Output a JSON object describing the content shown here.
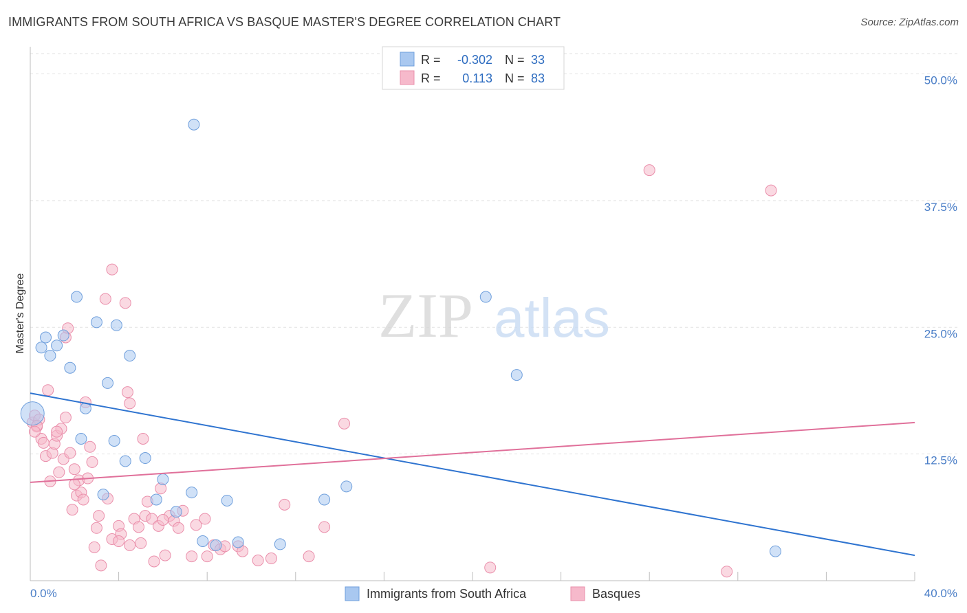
{
  "title": "IMMIGRANTS FROM SOUTH AFRICA VS BASQUE MASTER'S DEGREE CORRELATION CHART",
  "source": "Source: ZipAtlas.com",
  "watermark": {
    "zip": "ZIP",
    "atlas": "atlas"
  },
  "colors": {
    "blue_fill": "#a9c8f0",
    "blue_stroke": "#6f9fdc",
    "blue_line": "#2f74d0",
    "pink_fill": "#f6b9cb",
    "pink_stroke": "#ea8fab",
    "pink_line": "#e0709a"
  },
  "legend": {
    "rows": [
      {
        "r_label": "R =",
        "r_value": "-0.302",
        "n_label": "N =",
        "n_value": "33"
      },
      {
        "r_label": "R =",
        "r_value": "0.113",
        "n_label": "N =",
        "n_value": "83"
      }
    ]
  },
  "chart_data": {
    "type": "scatter",
    "title": "IMMIGRANTS FROM SOUTH AFRICA VS BASQUE MASTER'S DEGREE CORRELATION CHART",
    "xlabel": "",
    "ylabel": "Master's Degree",
    "xlim": [
      0,
      40
    ],
    "ylim": [
      0,
      52
    ],
    "x_tick_labels": [
      "0.0%",
      "40.0%"
    ],
    "y_ticks": [
      12.5,
      25.0,
      37.5,
      50.0
    ],
    "y_tick_labels": [
      "12.5%",
      "25.0%",
      "37.5%",
      "50.0%"
    ],
    "series": [
      {
        "name": "Immigrants from South Africa",
        "r": -0.302,
        "n": 33,
        "trend": {
          "x": [
            0,
            40
          ],
          "y": [
            18.5,
            2.5
          ]
        },
        "points": [
          {
            "x": 0.1,
            "y": 16.5,
            "big": true
          },
          {
            "x": 0.5,
            "y": 23
          },
          {
            "x": 0.7,
            "y": 24
          },
          {
            "x": 0.9,
            "y": 22.2
          },
          {
            "x": 1.2,
            "y": 23.2
          },
          {
            "x": 1.5,
            "y": 24.2
          },
          {
            "x": 1.8,
            "y": 21
          },
          {
            "x": 2.1,
            "y": 28
          },
          {
            "x": 2.3,
            "y": 14
          },
          {
            "x": 2.5,
            "y": 17
          },
          {
            "x": 3.0,
            "y": 25.5
          },
          {
            "x": 3.3,
            "y": 8.5
          },
          {
            "x": 3.5,
            "y": 19.5
          },
          {
            "x": 3.8,
            "y": 13.8
          },
          {
            "x": 3.9,
            "y": 25.2
          },
          {
            "x": 4.3,
            "y": 11.8
          },
          {
            "x": 4.5,
            "y": 22.2
          },
          {
            "x": 5.2,
            "y": 12.1
          },
          {
            "x": 5.7,
            "y": 8.0
          },
          {
            "x": 6.0,
            "y": 10
          },
          {
            "x": 6.6,
            "y": 6.8
          },
          {
            "x": 7.3,
            "y": 8.7
          },
          {
            "x": 7.4,
            "y": 45
          },
          {
            "x": 7.8,
            "y": 3.9
          },
          {
            "x": 8.4,
            "y": 3.5
          },
          {
            "x": 8.9,
            "y": 7.9
          },
          {
            "x": 9.4,
            "y": 3.8
          },
          {
            "x": 11.3,
            "y": 3.6
          },
          {
            "x": 13.3,
            "y": 8.0
          },
          {
            "x": 14.3,
            "y": 9.3
          },
          {
            "x": 20.6,
            "y": 28
          },
          {
            "x": 22.0,
            "y": 20.3
          },
          {
            "x": 33.7,
            "y": 2.9
          }
        ]
      },
      {
        "name": "Basques",
        "r": 0.113,
        "n": 83,
        "trend": {
          "x": [
            0,
            40
          ],
          "y": [
            9.7,
            15.6
          ]
        },
        "points": [
          {
            "x": 0.1,
            "y": 15.6
          },
          {
            "x": 0.2,
            "y": 16.3
          },
          {
            "x": 0.3,
            "y": 15.2
          },
          {
            "x": 0.4,
            "y": 15.9
          },
          {
            "x": 0.5,
            "y": 14
          },
          {
            "x": 0.6,
            "y": 13.6
          },
          {
            "x": 0.7,
            "y": 12.3
          },
          {
            "x": 0.8,
            "y": 18.8
          },
          {
            "x": 0.9,
            "y": 9.8
          },
          {
            "x": 1.0,
            "y": 12.6
          },
          {
            "x": 1.1,
            "y": 13.5
          },
          {
            "x": 1.2,
            "y": 14.3
          },
          {
            "x": 1.3,
            "y": 10.7
          },
          {
            "x": 1.4,
            "y": 15
          },
          {
            "x": 1.5,
            "y": 12
          },
          {
            "x": 1.6,
            "y": 16.1
          },
          {
            "x": 1.7,
            "y": 24.9
          },
          {
            "x": 1.8,
            "y": 12.6
          },
          {
            "x": 1.9,
            "y": 7.0
          },
          {
            "x": 2.0,
            "y": 11
          },
          {
            "x": 2.1,
            "y": 8.4
          },
          {
            "x": 2.2,
            "y": 9.9
          },
          {
            "x": 2.3,
            "y": 8.7
          },
          {
            "x": 2.4,
            "y": 8.0
          },
          {
            "x": 2.5,
            "y": 17.6
          },
          {
            "x": 2.6,
            "y": 10.1
          },
          {
            "x": 2.7,
            "y": 13.2
          },
          {
            "x": 2.8,
            "y": 11.7
          },
          {
            "x": 2.9,
            "y": 3.3
          },
          {
            "x": 3.0,
            "y": 5.2
          },
          {
            "x": 3.1,
            "y": 6.4
          },
          {
            "x": 3.2,
            "y": 1.5
          },
          {
            "x": 3.4,
            "y": 27.8
          },
          {
            "x": 3.5,
            "y": 8.1
          },
          {
            "x": 3.7,
            "y": 4.1
          },
          {
            "x": 3.7,
            "y": 30.7
          },
          {
            "x": 4.0,
            "y": 5.4
          },
          {
            "x": 4.1,
            "y": 4.6
          },
          {
            "x": 4.3,
            "y": 27.4
          },
          {
            "x": 4.4,
            "y": 18.6
          },
          {
            "x": 4.5,
            "y": 3.5
          },
          {
            "x": 4.7,
            "y": 6.1
          },
          {
            "x": 4.9,
            "y": 5.3
          },
          {
            "x": 5.0,
            "y": 3.7
          },
          {
            "x": 5.1,
            "y": 14
          },
          {
            "x": 5.2,
            "y": 6.4
          },
          {
            "x": 5.3,
            "y": 7.8
          },
          {
            "x": 5.5,
            "y": 6.1
          },
          {
            "x": 5.6,
            "y": 1.9
          },
          {
            "x": 5.8,
            "y": 5.4
          },
          {
            "x": 5.9,
            "y": 9.1
          },
          {
            "x": 6.1,
            "y": 2.5
          },
          {
            "x": 6.3,
            "y": 6.4
          },
          {
            "x": 6.5,
            "y": 5.9
          },
          {
            "x": 6.7,
            "y": 5.2
          },
          {
            "x": 6.9,
            "y": 6.9
          },
          {
            "x": 7.3,
            "y": 2.4
          },
          {
            "x": 7.5,
            "y": 5.5
          },
          {
            "x": 7.9,
            "y": 6.1
          },
          {
            "x": 8.0,
            "y": 2.4
          },
          {
            "x": 8.3,
            "y": 3.5
          },
          {
            "x": 8.6,
            "y": 3.1
          },
          {
            "x": 8.8,
            "y": 3.4
          },
          {
            "x": 9.4,
            "y": 3.4
          },
          {
            "x": 9.6,
            "y": 2.9
          },
          {
            "x": 10.3,
            "y": 2.0
          },
          {
            "x": 10.9,
            "y": 2.2
          },
          {
            "x": 11.5,
            "y": 7.5
          },
          {
            "x": 12.6,
            "y": 2.4
          },
          {
            "x": 13.3,
            "y": 5.3
          },
          {
            "x": 14.2,
            "y": 15.5
          },
          {
            "x": 20.8,
            "y": 1.3
          },
          {
            "x": 28.0,
            "y": 40.5
          },
          {
            "x": 33.5,
            "y": 38.5
          },
          {
            "x": 31.5,
            "y": 0.9
          },
          {
            "x": 4.5,
            "y": 17.5
          },
          {
            "x": 1.6,
            "y": 24.0
          },
          {
            "x": 0.3,
            "y": 15.3
          },
          {
            "x": 2.0,
            "y": 9.5
          },
          {
            "x": 0.2,
            "y": 14.7
          },
          {
            "x": 6.0,
            "y": 6.0
          },
          {
            "x": 1.2,
            "y": 14.7
          },
          {
            "x": 4.0,
            "y": 3.9
          }
        ]
      }
    ]
  },
  "bottom_legend": {
    "items": [
      {
        "label": "Immigrants from South Africa"
      },
      {
        "label": "Basques"
      }
    ]
  }
}
